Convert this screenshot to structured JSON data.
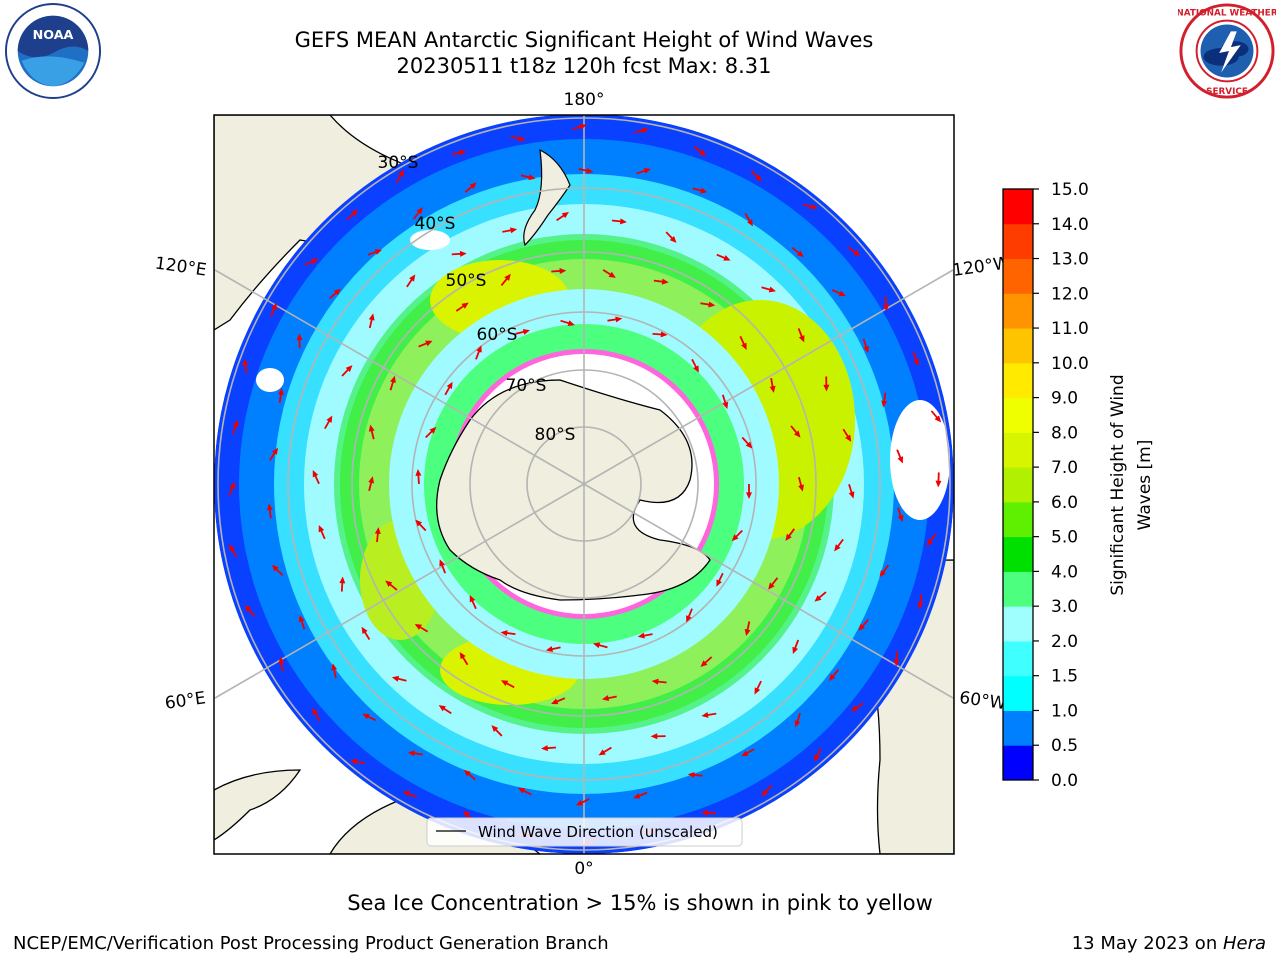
{
  "title": {
    "line1": "GEFS MEAN Antarctic Significant Height of Wind Waves",
    "line2": "20230511 t18z 120h fcst   Max: 8.31"
  },
  "logos": {
    "left": "NOAA",
    "right": "NATIONAL WEATHER SERVICE"
  },
  "map": {
    "projection": "south-polar-stereographic",
    "longitude_labels": [
      "180°",
      "120°E",
      "120°W",
      "60°E",
      "60°W",
      "0°"
    ],
    "latitude_labels": [
      "30°S",
      "40°S",
      "50°S",
      "60°S",
      "70°S",
      "80°S"
    ],
    "legend_label": "Wind Wave Direction (unscaled)"
  },
  "colorbar": {
    "label_line1": "Significant Height of Wind",
    "label_line2": "Waves [m]",
    "ticks": [
      "0.0",
      "0.5",
      "1.0",
      "1.5",
      "2.0",
      "3.0",
      "4.0",
      "5.0",
      "6.0",
      "7.0",
      "8.0",
      "9.0",
      "10.0",
      "11.0",
      "12.0",
      "13.0",
      "14.0",
      "15.0"
    ],
    "colors": [
      "#0000ff",
      "#007fff",
      "#00ffff",
      "#3fffff",
      "#9fffff",
      "#4cff7f",
      "#00e000",
      "#5fef00",
      "#b0f000",
      "#d8f500",
      "#f0ff00",
      "#ffea00",
      "#ffc400",
      "#ff9400",
      "#ff6400",
      "#ff3c00",
      "#ff0000"
    ]
  },
  "footer": {
    "ice_note": "Sea Ice Concentration > 15% is shown in pink to yellow",
    "credit_left": "NCEP/EMC/Verification Post Processing Product Generation Branch",
    "date_text": "13 May 2023 on ",
    "machine": "Hera"
  }
}
